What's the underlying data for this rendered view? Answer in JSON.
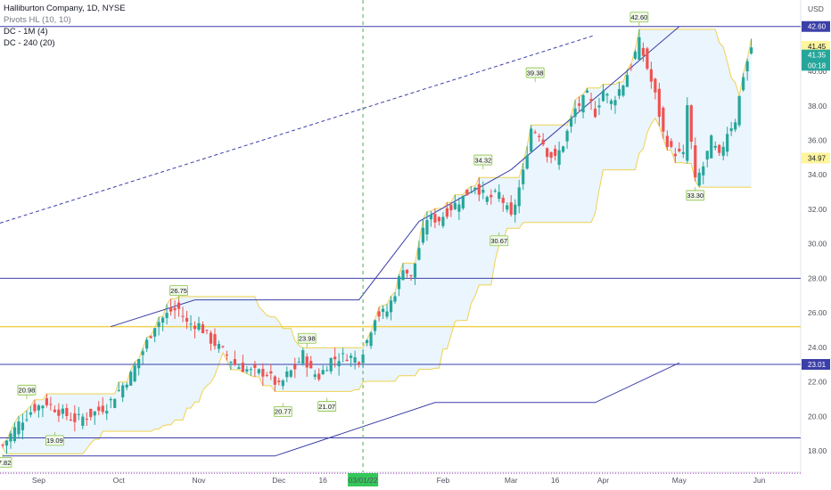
{
  "legend": {
    "title": "Halliburton Company, 1D, NYSE",
    "indicator_1": "Pivots HL (10, 10)",
    "indicator_2": "DC - 1M (4)",
    "indicator_3": "DC - 240 (20)"
  },
  "chart_data": {
    "type": "candlestick",
    "y_axis": {
      "unit": "USD",
      "range": [
        16.6,
        43.9
      ],
      "ticks": [
        18.0,
        20.0,
        22.0,
        24.0,
        26.0,
        28.0,
        30.0,
        32.0,
        34.0,
        36.0,
        38.0,
        40.0
      ],
      "tick_labels": [
        "18.00",
        "20.00",
        "22.00",
        "24.00",
        "26.00",
        "28.00",
        "30.00",
        "32.00",
        "34.00",
        "36.00",
        "38.00",
        "40.00"
      ]
    },
    "x_axis": {
      "labels": [
        "Sep",
        "Oct",
        "Nov",
        "Dec",
        "16",
        "03/01/22",
        "Feb",
        "Mar",
        "16",
        "Apr",
        "May",
        "Jun"
      ],
      "highlighted_label": "03/01/22"
    },
    "price_tags": [
      {
        "value": "42.60",
        "bg": "#3b3fa8",
        "fg": "#ffffff"
      },
      {
        "value": "41.45",
        "bg": "#fff59d",
        "fg": "#131722"
      },
      {
        "value": "41.35",
        "bg": "#26a69a",
        "fg": "#ffffff"
      },
      {
        "value": "00:18",
        "bg": "#26a69a",
        "fg": "#ffffff"
      },
      {
        "value": "34.97",
        "bg": "#fff59d",
        "fg": "#131722"
      },
      {
        "value": "23.01",
        "bg": "#3b3fa8",
        "fg": "#ffffff"
      }
    ],
    "pivot_labels": [
      "17.82",
      "20.98",
      "19.09",
      "26.75",
      "20.77",
      "23.98",
      "21.07",
      "34.32",
      "30.67",
      "39.38",
      "42.60",
      "33.30"
    ],
    "horizontal_levels": [
      42.6,
      28.0,
      25.2,
      23.01,
      18.75
    ],
    "colors": {
      "up": "#26a69a",
      "down": "#ef5350",
      "level_line": "#3b3fa8",
      "channel_line": "#f0d250",
      "channel_fill": "#e3f2fd",
      "vertical_marker": "#4caf50"
    }
  }
}
